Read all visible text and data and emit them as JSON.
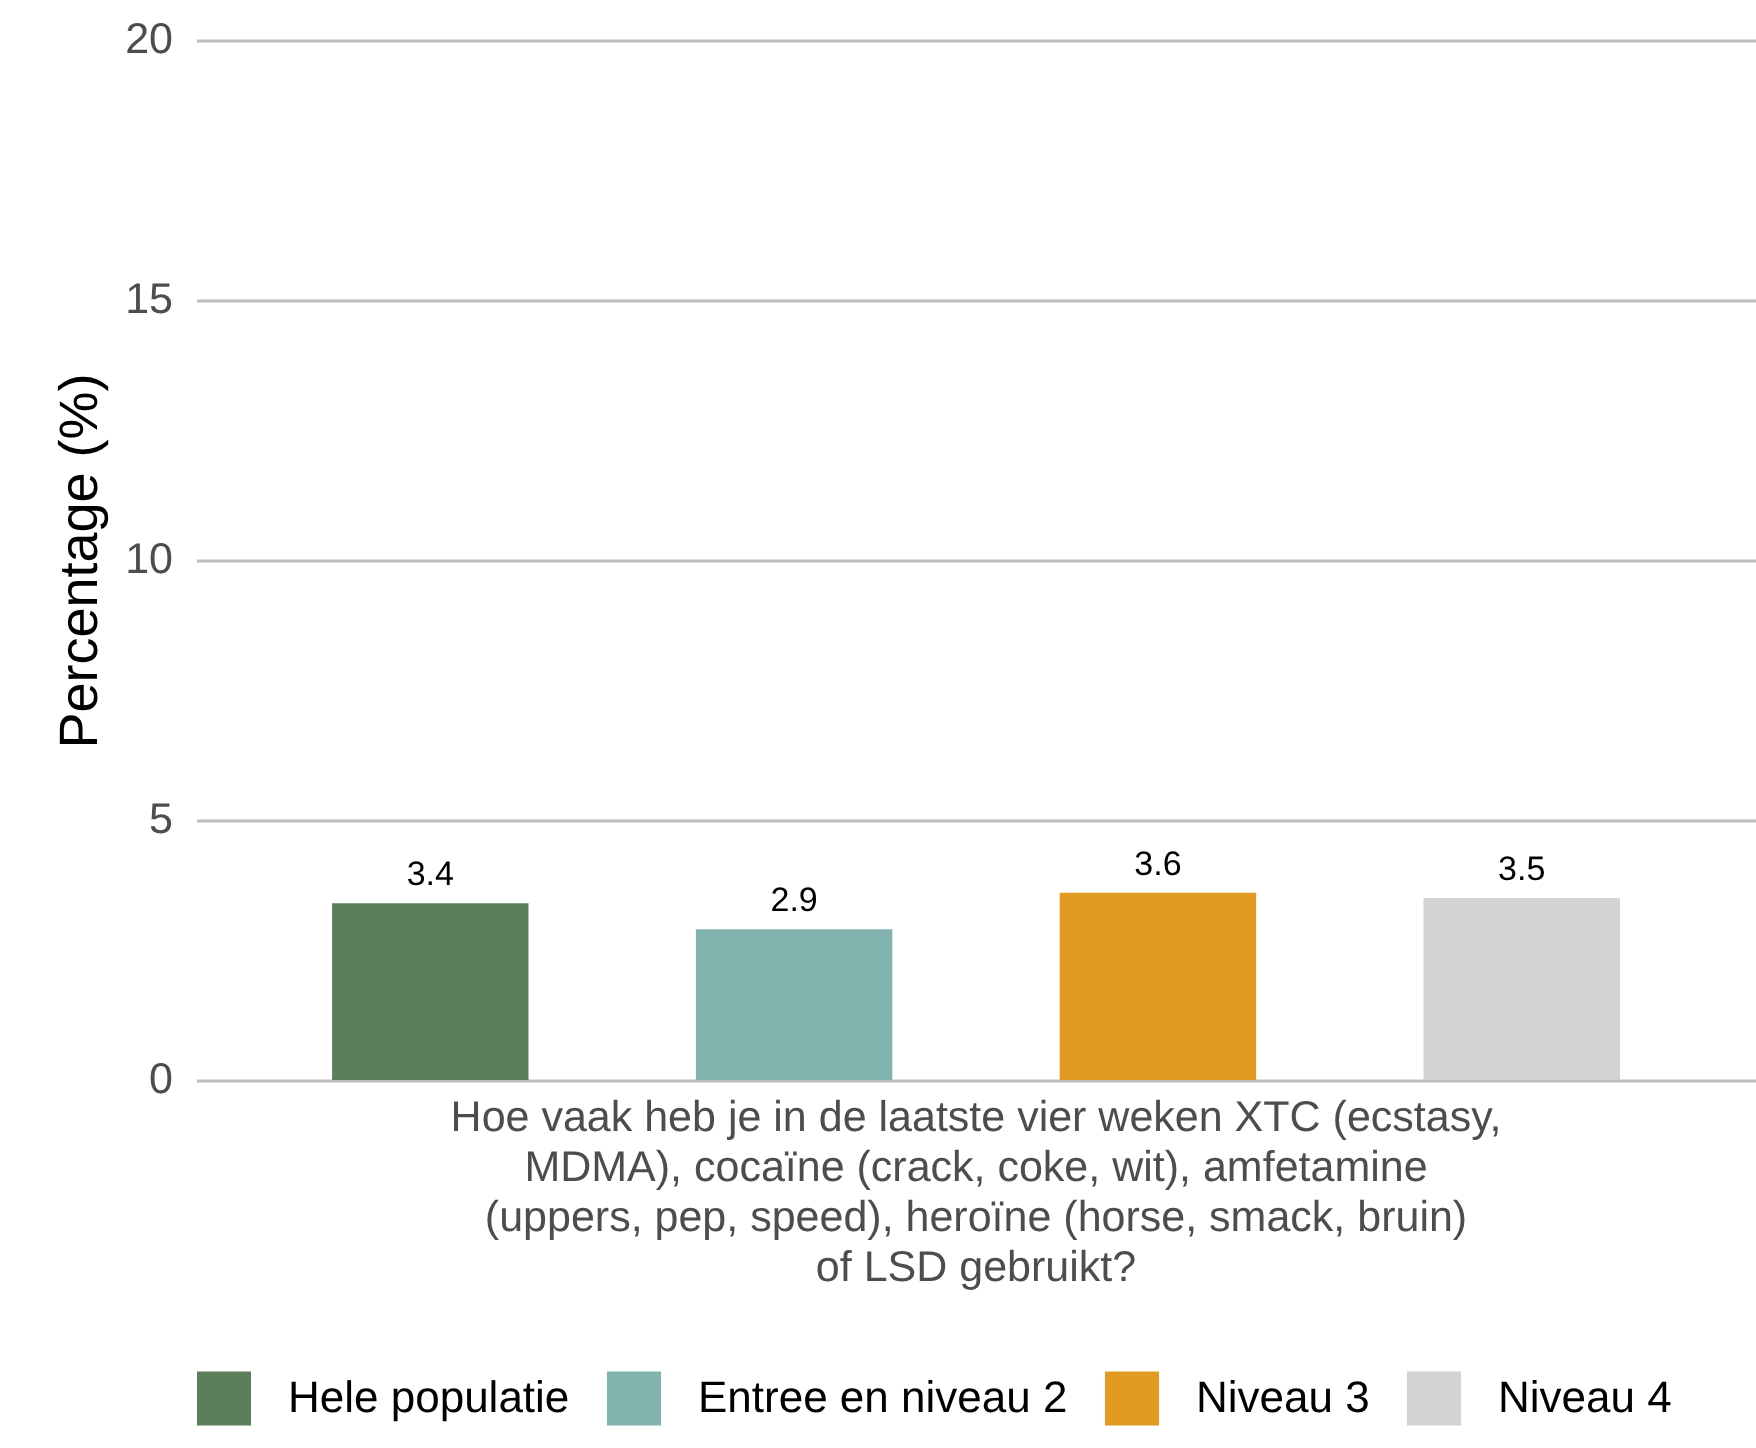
{
  "chart_data": {
    "type": "bar",
    "ylabel": "Percentage (%)",
    "categories": [
      "Hoe vaak heb je in de laatste vier weken XTC (ecstasy, MDMA), cocaïne (crack, coke, wit), amfetamine (uppers, pep, speed), heroïne (horse, smack, bruin) of LSD gebruikt?"
    ],
    "series": [
      {
        "name": "Hele populatie",
        "color": "#5b7f5b",
        "values": [
          3.4
        ]
      },
      {
        "name": "Entree en niveau 2",
        "color": "#82b4af",
        "values": [
          2.9
        ]
      },
      {
        "name": "Niveau 3",
        "color": "#e19b22",
        "values": [
          3.6
        ]
      },
      {
        "name": "Niveau 4",
        "color": "#d3d3d3",
        "values": [
          3.5
        ]
      }
    ],
    "ylim": [
      0,
      20
    ],
    "yticks": [
      0,
      5,
      10,
      15,
      20
    ],
    "grid": "y",
    "legend": "bottom",
    "data_labels": true
  }
}
